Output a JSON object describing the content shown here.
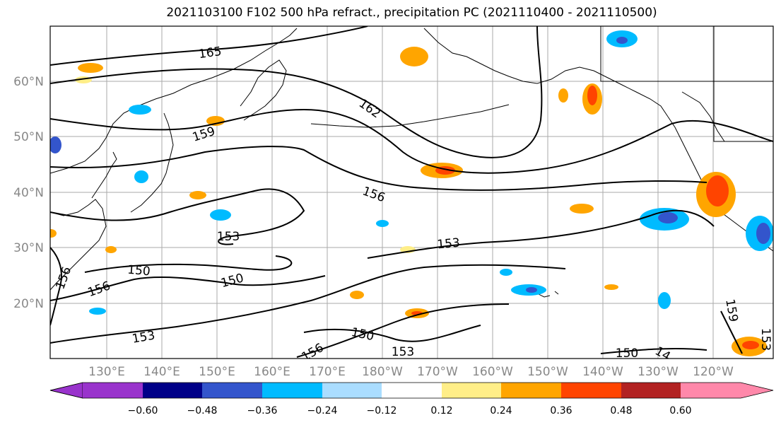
{
  "title": "2021103100 F102 500 hPa refract., precipitation PC (2021110400 - 2021110500)",
  "lat_labels": [
    "60°N",
    "50°N",
    "40°N",
    "30°N",
    "20°N"
  ],
  "lon_labels": [
    "130°E",
    "140°E",
    "150°E",
    "160°E",
    "170°E",
    "180°W",
    "170°W",
    "160°W",
    "150°W",
    "140°W",
    "130°W",
    "120°W"
  ],
  "contour_labels": [
    {
      "text": "165"
    },
    {
      "text": "162"
    },
    {
      "text": "159"
    },
    {
      "text": "156"
    },
    {
      "text": "153"
    },
    {
      "text": "153"
    },
    {
      "text": "150"
    },
    {
      "text": "150"
    },
    {
      "text": "156"
    },
    {
      "text": "156"
    },
    {
      "text": "153"
    },
    {
      "text": "150"
    },
    {
      "text": "153"
    },
    {
      "text": "156"
    },
    {
      "text": "150"
    },
    {
      "text": "14"
    },
    {
      "text": "159"
    },
    {
      "text": "153"
    }
  ],
  "colorbar": {
    "colors": [
      "#9933cc",
      "#000088",
      "#3355cc",
      "#00bbff",
      "#aaddff",
      "#ffffff",
      "#ffee88",
      "#ffa500",
      "#ff4400",
      "#b22222",
      "#ff88aa"
    ],
    "ticks": [
      "−0.60",
      "−0.48",
      "−0.36",
      "−0.24",
      "−0.12",
      "0.12",
      "0.24",
      "0.36",
      "0.48",
      "0.60"
    ]
  },
  "colors": {
    "contour": "#000000",
    "grid": "#aaaaaa",
    "orange": "#ffa500",
    "yellow": "#ffee88",
    "red": "#ff4400",
    "cyan": "#00bbff",
    "lightblue": "#aaddff",
    "blue": "#3355cc"
  }
}
